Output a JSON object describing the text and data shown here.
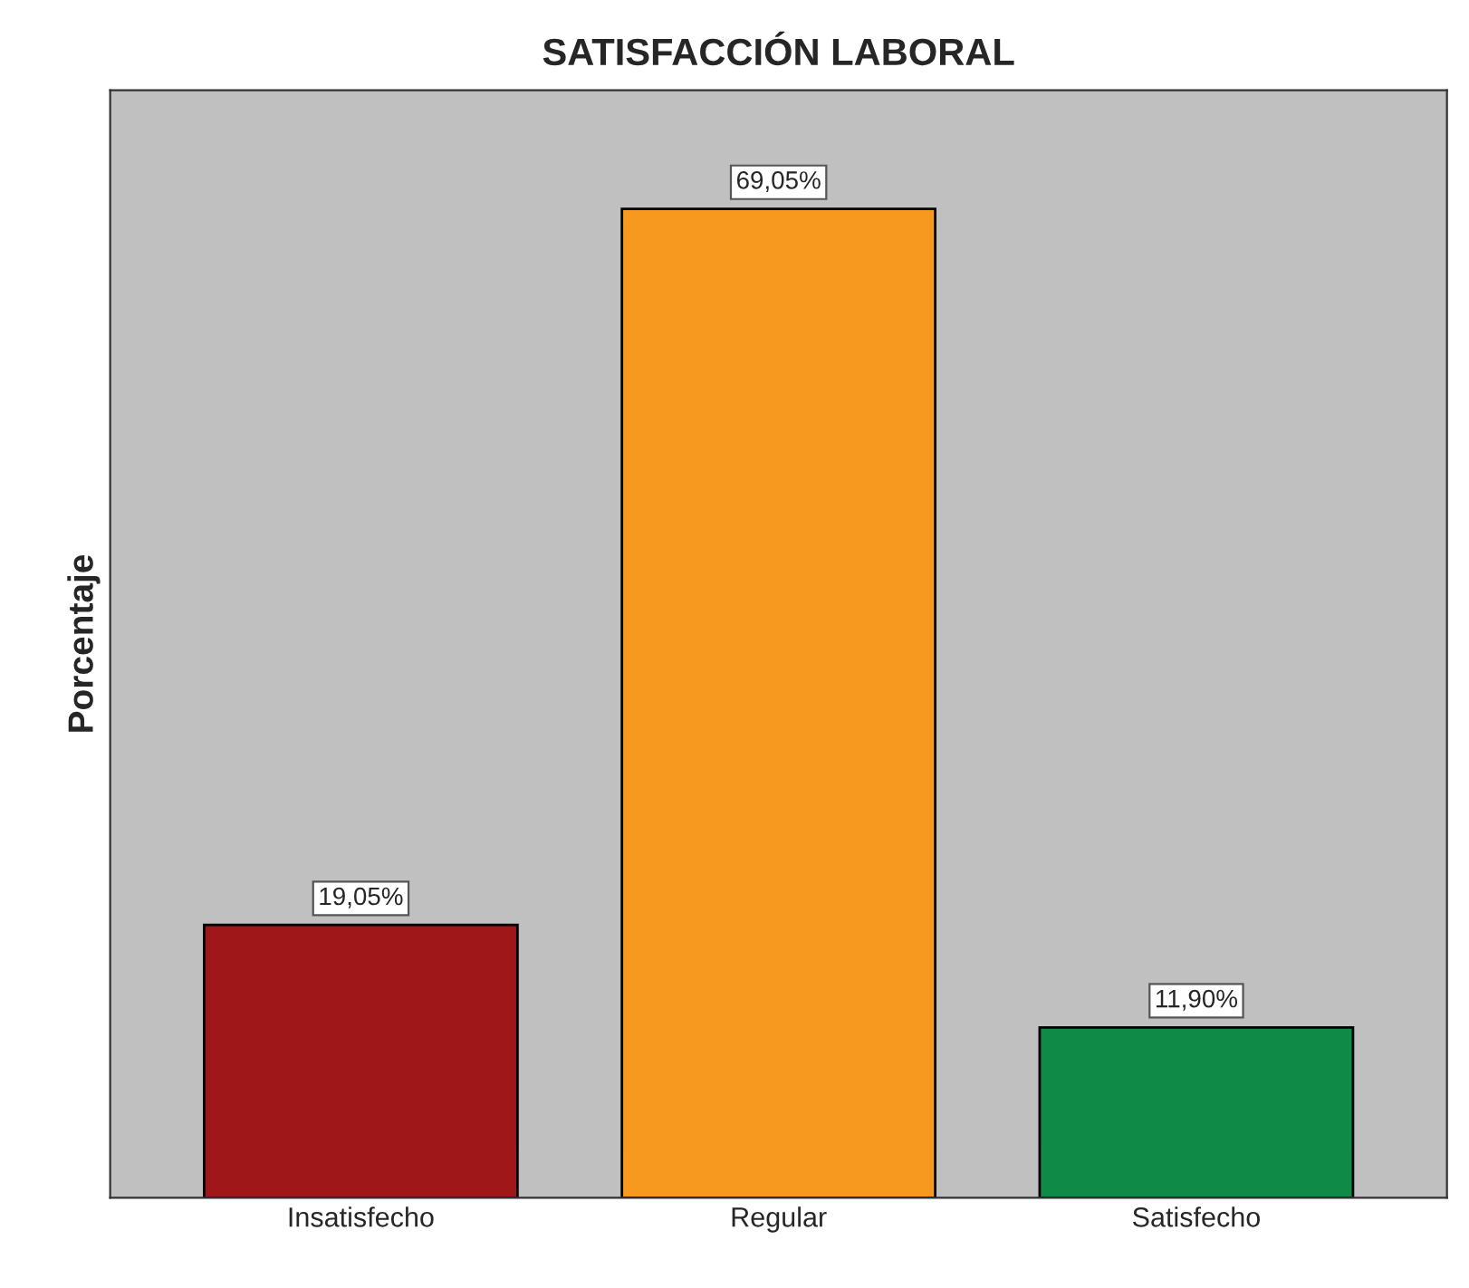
{
  "chart_data": {
    "type": "bar",
    "title": "SATISFACCIÓN LABORAL",
    "ylabel": "Porcentaje",
    "categories": [
      "Insatisfecho",
      "Regular",
      "Satisfecho"
    ],
    "values": [
      19.05,
      69.05,
      11.9
    ],
    "colors": [
      "#a0171a",
      "#f7991f",
      "#0f8b47"
    ],
    "value_labels": [
      "19,05%",
      "69,05%",
      "11,90%"
    ],
    "tick_labels": "x",
    "grid": false,
    "legend": false
  }
}
